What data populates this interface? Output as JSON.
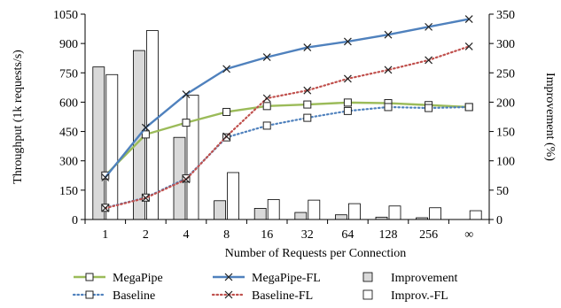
{
  "chart_data": {
    "type": "bar",
    "title": "",
    "xlabel": "Number of Requests per Connection",
    "ylabel": "Throughput (1k requests/s)",
    "y2label": "Improvement (%)",
    "categories": [
      "1",
      "2",
      "4",
      "8",
      "16",
      "32",
      "64",
      "128",
      "256",
      "∞"
    ],
    "ylim": [
      0,
      1050
    ],
    "yticks": [
      0,
      150,
      300,
      450,
      600,
      750,
      900,
      1050
    ],
    "y2lim": [
      0,
      350
    ],
    "y2ticks": [
      0,
      50,
      100,
      150,
      200,
      250,
      300,
      350
    ],
    "grid": false,
    "legend_position": "bottom",
    "series": [
      {
        "name": "MegaPipe",
        "kind": "line",
        "axis": "left",
        "color": "#9bbb59",
        "dash": "solid",
        "marker": "square",
        "values": [
          225,
          435,
          495,
          550,
          580,
          588,
          598,
          595,
          585,
          575
        ]
      },
      {
        "name": "MegaPipe-FL",
        "kind": "line",
        "axis": "left",
        "color": "#4f81bd",
        "dash": "solid",
        "marker": "x",
        "values": [
          215,
          470,
          640,
          770,
          830,
          880,
          910,
          945,
          985,
          1025
        ]
      },
      {
        "name": "Baseline",
        "kind": "line",
        "axis": "left",
        "color": "#4f81bd",
        "dash": "dotted",
        "marker": "square",
        "values": [
          60,
          112,
          210,
          420,
          480,
          520,
          555,
          575,
          570,
          575
        ]
      },
      {
        "name": "Baseline-FL",
        "kind": "line",
        "axis": "left",
        "color": "#c0504d",
        "dash": "dotted",
        "marker": "x",
        "values": [
          58,
          110,
          205,
          425,
          620,
          660,
          720,
          765,
          815,
          885
        ]
      },
      {
        "name": "Improvement",
        "kind": "bar",
        "axis": "right",
        "fill": "#d9d9d9",
        "values": [
          260,
          288,
          140,
          32,
          19,
          12,
          8,
          4,
          3,
          null
        ]
      },
      {
        "name": "Improv.-FL",
        "kind": "bar",
        "axis": "right",
        "fill": "#ffffff",
        "values": [
          247,
          322,
          212,
          80,
          34,
          33,
          27,
          23,
          20,
          15
        ]
      }
    ]
  }
}
